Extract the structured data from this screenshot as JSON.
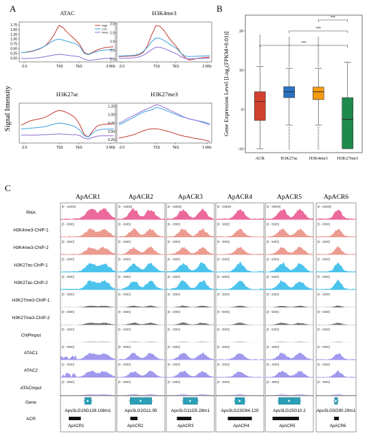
{
  "panel_labels": {
    "a": "A",
    "b": "B",
    "c": "C"
  },
  "colors": {
    "high": "#c0392b",
    "low": "#3aa0dc",
    "none": "#8e6bd6",
    "acr_box": "#d2412f",
    "h3k27ac_box": "#2b72c2",
    "h3k4me3_box": "#f39c12",
    "h3k27me3_box": "#1e8b4c",
    "rna": "#e8508a",
    "h3k4me3": "#e98a7c",
    "h3k27ac": "#2bb8ea",
    "h3k27me3": "#555555",
    "chipinput": "#c8c8c8",
    "atac": "#8f87ea",
    "gene": "#2a9fb6"
  },
  "chart_data": [
    {
      "type": "line",
      "title": "ATAC",
      "ylabel": "Signal Intensity",
      "x_ticks": [
        "-2.0",
        "TSS",
        "TES",
        "2.0Kb"
      ],
      "y_ticks": [
        "0.00",
        "0.25",
        "0.50",
        "0.75",
        "1.00",
        "1.25",
        "1.50",
        "1.75"
      ],
      "ylim": [
        -0.2,
        1.9
      ],
      "legend": [
        "High",
        "Low",
        "None"
      ],
      "legend_placement": "top-right",
      "series": [
        {
          "name": "High",
          "values": [
            0.28,
            0.3,
            0.33,
            0.38,
            0.45,
            0.55,
            0.7,
            0.95,
            1.3,
            1.72,
            1.6,
            1.35,
            1.15,
            0.95,
            0.7,
            0.3,
            0.2,
            0.3,
            0.42,
            0.5,
            0.55,
            0.58,
            0.6
          ]
        },
        {
          "name": "Low",
          "values": [
            0.28,
            0.31,
            0.35,
            0.4,
            0.47,
            0.56,
            0.68,
            0.82,
            0.95,
            1.0,
            0.95,
            0.88,
            0.82,
            0.75,
            0.6,
            0.25,
            0.18,
            0.27,
            0.35,
            0.4,
            0.42,
            0.44,
            0.46
          ]
        },
        {
          "name": "None",
          "values": [
            -0.02,
            -0.02,
            -0.01,
            0.0,
            0.02,
            0.05,
            0.09,
            0.13,
            0.17,
            0.2,
            0.18,
            0.15,
            0.12,
            0.1,
            0.06,
            -0.05,
            -0.12,
            -0.1,
            -0.07,
            -0.04,
            -0.02,
            -0.01,
            0.0
          ]
        }
      ]
    },
    {
      "type": "line",
      "title": "H3K4me3",
      "x_ticks": [
        "-2.0",
        "TSS",
        "TES",
        "2.0Kb"
      ],
      "y_ticks": [
        "0.0",
        "0.5",
        "1.0",
        "1.5",
        "2.0"
      ],
      "ylim": [
        -0.15,
        2.1
      ],
      "series": [
        {
          "name": "High",
          "values": [
            0.15,
            0.16,
            0.17,
            0.18,
            0.2,
            0.25,
            0.4,
            0.8,
            1.4,
            1.9,
            1.85,
            1.6,
            1.25,
            0.95,
            0.7,
            0.35,
            0.1,
            -0.05,
            0.0,
            0.05,
            0.08,
            0.1,
            0.12
          ]
        },
        {
          "name": "Low",
          "values": [
            0.18,
            0.19,
            0.2,
            0.21,
            0.24,
            0.3,
            0.45,
            0.7,
            1.0,
            1.2,
            1.18,
            1.05,
            0.9,
            0.75,
            0.6,
            0.35,
            0.18,
            0.15,
            0.16,
            0.17,
            0.18,
            0.19,
            0.2
          ]
        },
        {
          "name": "None",
          "values": [
            0.05,
            0.05,
            0.06,
            0.07,
            0.09,
            0.14,
            0.23,
            0.38,
            0.55,
            0.68,
            0.67,
            0.6,
            0.5,
            0.4,
            0.3,
            0.15,
            0.05,
            0.02,
            0.03,
            0.04,
            0.05,
            0.05,
            0.06
          ]
        }
      ]
    },
    {
      "type": "line",
      "title": "H3K27ac",
      "x_ticks": [
        "-2.0",
        "TSS",
        "TES",
        "2.0Kb"
      ],
      "ylim": [
        0.0,
        1.0
      ],
      "series": [
        {
          "name": "High",
          "values": [
            0.45,
            0.5,
            0.55,
            0.58,
            0.6,
            0.62,
            0.66,
            0.72,
            0.78,
            0.82,
            0.8,
            0.76,
            0.7,
            0.62,
            0.45,
            0.22,
            0.15,
            0.3,
            0.42,
            0.46,
            0.47,
            0.48,
            0.48
          ]
        },
        {
          "name": "Low",
          "values": [
            0.35,
            0.36,
            0.37,
            0.38,
            0.39,
            0.4,
            0.42,
            0.45,
            0.48,
            0.5,
            0.49,
            0.47,
            0.44,
            0.4,
            0.32,
            0.18,
            0.15,
            0.25,
            0.32,
            0.34,
            0.35,
            0.35,
            0.36
          ]
        },
        {
          "name": "None",
          "values": [
            0.2,
            0.2,
            0.2,
            0.2,
            0.2,
            0.21,
            0.21,
            0.22,
            0.22,
            0.23,
            0.22,
            0.22,
            0.21,
            0.21,
            0.19,
            0.12,
            0.1,
            0.14,
            0.17,
            0.18,
            0.18,
            0.18,
            0.18
          ]
        }
      ]
    },
    {
      "type": "line",
      "title": "H3K27me3",
      "x_ticks": [
        "-2.0",
        "TSS",
        "TES",
        "2.0Kb"
      ],
      "y_ticks": [
        "0.25",
        "0.50",
        "0.75",
        "1.00",
        "1.25"
      ],
      "ylim": [
        0.15,
        1.35
      ],
      "series": [
        {
          "name": "High",
          "values": [
            0.3,
            0.32,
            0.35,
            0.38,
            0.42,
            0.47,
            0.52,
            0.56,
            0.58,
            0.58,
            0.56,
            0.53,
            0.5,
            0.46,
            0.42,
            0.38,
            0.35,
            0.33,
            0.3,
            0.28,
            0.26,
            0.23,
            0.2
          ]
        },
        {
          "name": "Low",
          "values": [
            0.7,
            0.75,
            0.82,
            0.88,
            0.95,
            1.02,
            1.08,
            1.12,
            1.15,
            1.22,
            1.2,
            1.15,
            1.1,
            1.05,
            1.0,
            0.95,
            0.92,
            0.88,
            0.85,
            0.82,
            0.8,
            0.77,
            0.72
          ]
        },
        {
          "name": "None",
          "values": [
            0.75,
            0.8,
            0.88,
            0.94,
            1.0,
            1.07,
            1.13,
            1.18,
            1.24,
            1.3,
            1.28,
            1.22,
            1.16,
            1.1,
            1.04,
            0.98,
            0.92,
            0.88,
            0.85,
            0.82,
            0.78,
            0.74,
            0.7
          ]
        }
      ]
    },
    {
      "type": "box",
      "ylabel": "Gene Expression Level [Log₂(FPKM+0.01)]",
      "categories": [
        "ACR",
        "H3K27ac",
        "H3K4me3",
        "H3K27me3"
      ],
      "y_ticks": [
        "-10",
        "0",
        "10",
        "20"
      ],
      "ylim": [
        -11,
        24
      ],
      "boxes": [
        {
          "name": "ACR",
          "whisker_low": -10,
          "q1": -2.8,
          "median": 2.0,
          "q3": 4.5,
          "whisker_high": 11
        },
        {
          "name": "H3K27ac",
          "whisker_low": -4,
          "q1": 3.0,
          "median": 4.5,
          "q3": 5.8,
          "whisker_high": 10.5
        },
        {
          "name": "H3K4me3",
          "whisker_low": -4,
          "q1": 2.5,
          "median": 4.5,
          "q3": 5.7,
          "whisker_high": 10.5
        },
        {
          "name": "H3K27me3",
          "whisker_low": -10,
          "q1": -10,
          "median": -2.5,
          "q3": 3.0,
          "whisker_high": 12
        }
      ],
      "significance": "***"
    }
  ],
  "tracks": {
    "columns": [
      "ApACR1",
      "ApACR2",
      "ApACR3",
      "ApACR4",
      "ApACR5",
      "ApACR6"
    ],
    "rows": [
      "RNA",
      "H3K4me3-ChIP-1",
      "H3K4me3-ChIP-2",
      "H3K27ac-ChIP-1",
      "H3K27ac-ChIP-2",
      "H3K27me3-ChIP-1",
      "H3K27me3-ChIP-2",
      "ChIPinput",
      "ATAC1",
      "ATAC2",
      "ATACInput"
    ],
    "row_colors": [
      "rna",
      "h3k4me3",
      "h3k4me3",
      "h3k27ac",
      "h3k27ac",
      "h3k27me3",
      "h3k27me3",
      "chipinput",
      "atac",
      "atac",
      "atac"
    ],
    "ranges": [
      [
        "[0 - 12000]",
        "[0 - 13000]",
        "[0 - 34500]",
        "[0 - 42800]",
        "[0 - 39000]",
        "[0 - 63000]"
      ],
      [
        "[0 - 3000]",
        "[0 - 3000]",
        "[0 - 3000]",
        "[0 - 3000]",
        "[0 - 5000]",
        "[0 - 3000]"
      ],
      [
        "[0 - 3000]",
        "[0 - 3000]",
        "[0 - 3000]",
        "[0 - 3000]",
        "[0 - 5000]",
        "[0 - 3000]"
      ],
      [
        "[0 - 3000]",
        "[0 - 3000]",
        "[0 - 3000]",
        "[0 - 5000]",
        "[0 - 5000]",
        "[0 - 3000]"
      ],
      [
        "[0 - 3000]",
        "[0 - 3000]",
        "[0 - 3000]",
        "[0 - 5000]",
        "[0 - 5000]",
        "[0 - 3000]"
      ],
      [
        "[0 - 3000]",
        "[0 - 3000]",
        "[0 - 3000]",
        "[0 - 5000]",
        "[0 - 5000]",
        "[0 - 3000]"
      ],
      [
        "[0 - 3000]",
        "[0 - 3000]",
        "[0 - 3000]",
        "[0 - 5000]",
        "[0 - 5000]",
        "[0 - 3000]"
      ],
      [
        "[0 - 3000]",
        "[0 - 3000]",
        "[0 - 3000]",
        "[0 - 5000]",
        "[0 - 5000]",
        "[0 - 3000]"
      ],
      [
        "[0 - 3000]",
        "[0 - 3000]",
        "[0 - 3000]",
        "[0 - 3000]",
        "[0 - 3000]",
        "[0 - 3000]"
      ],
      [
        "[0 - 3000]",
        "[0 - 3000]",
        "[0 - 3000]",
        "[0 - 3000]",
        "[0 - 3000]",
        "[0 - 3000]"
      ],
      [
        "[0 - 3000]",
        "[0 - 3000]",
        "[0 - 3000]",
        "[0 - 3000]",
        "[0 - 3000]",
        "[0 - 3000]"
      ]
    ],
    "gene_row_label": "Gene",
    "acr_row_label": "ACR",
    "genes": [
      "Apv3LG19G139.108m1",
      "Apv3LG2G11.95",
      "Apv3LG11G5.28m1",
      "Apv3LG23G94.120",
      "Apv3LG15G10.2",
      "Apv3LG5G90.29m1"
    ],
    "acrs": [
      "ApACR1",
      "ApACR2",
      "ApACR3",
      "ApACR4",
      "ApACR5",
      "ApACR6"
    ]
  }
}
